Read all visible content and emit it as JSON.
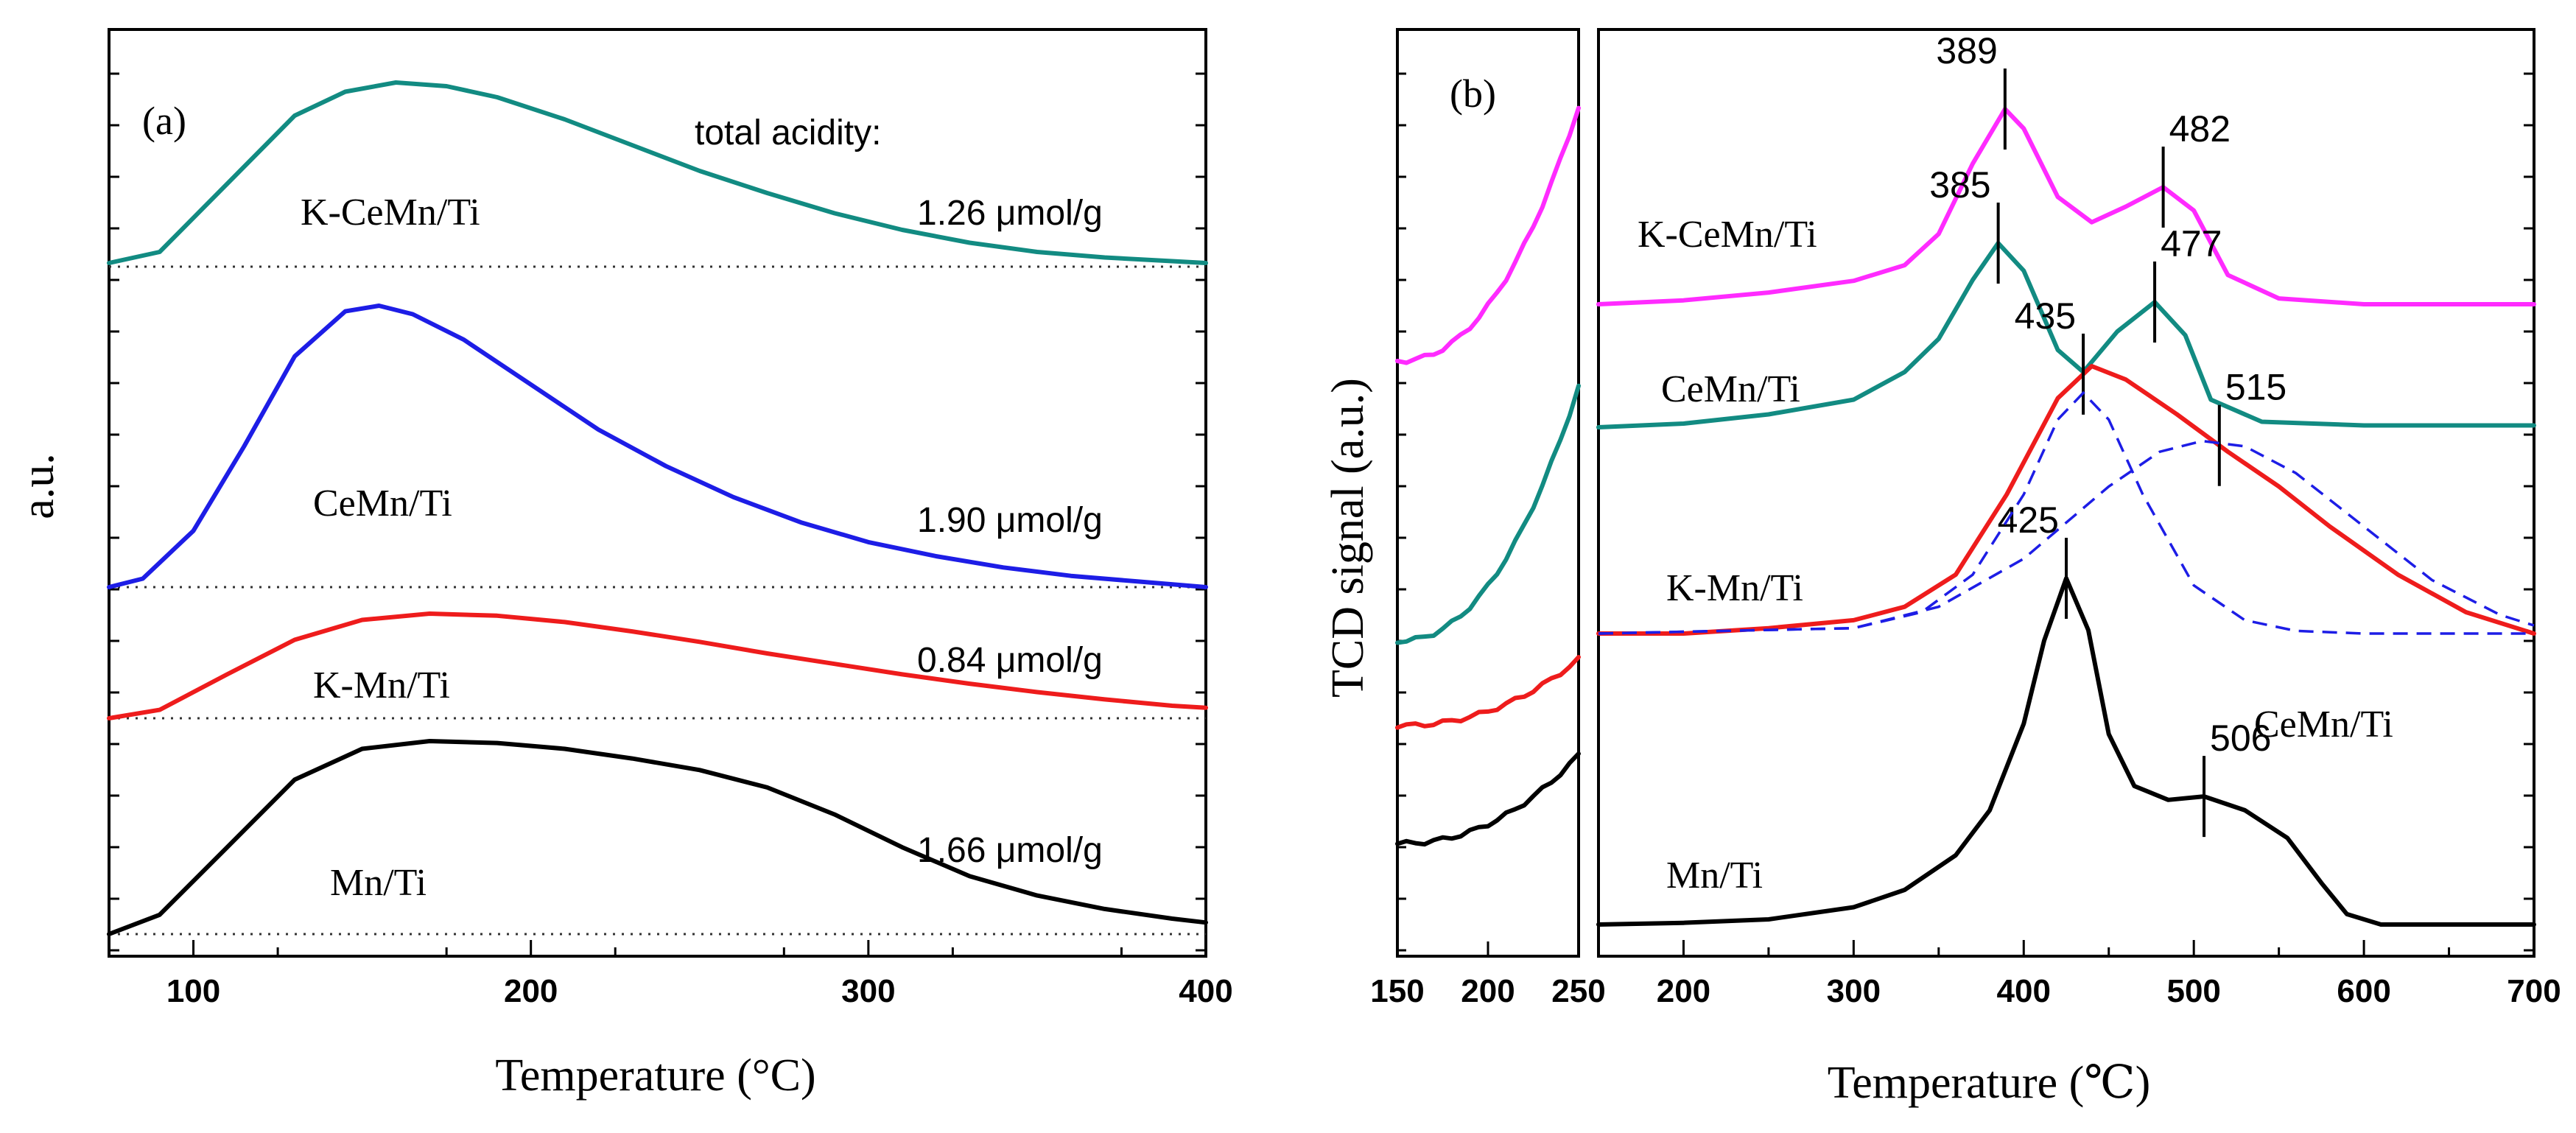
{
  "colors": {
    "K-CeMn/Ti_a": "#128b82",
    "CeMn/Ti_a": "#1d1de6",
    "K-Mn/Ti_a": "#ee1c1c",
    "Mn/Ti_a": "#000000",
    "K-CeMn/Ti_b": "#ff2bff",
    "CeMn/Ti_b": "#128b82",
    "K-Mn/Ti_b": "#ee1c1c",
    "Mn/Ti_b": "#000000",
    "deconvolution": "#1d1de6"
  },
  "chart_data": [
    {
      "panel": "(a)",
      "type": "line",
      "title": "",
      "xlabel": "Temperature (°C)",
      "ylabel": "a.u.",
      "xlim": [
        75,
        400
      ],
      "xticks": [
        100,
        200,
        300,
        400
      ],
      "annotation_header": "total acidity:",
      "series": [
        {
          "name": "K-CeMn/Ti",
          "acidity": "1.26 μmol/g",
          "x": [
            75,
            90,
            110,
            130,
            145,
            160,
            175,
            190,
            210,
            230,
            250,
            270,
            290,
            310,
            330,
            350,
            370,
            390,
            400
          ],
          "y": [
            0.02,
            0.08,
            0.45,
            0.82,
            0.95,
            1.0,
            0.98,
            0.92,
            0.8,
            0.66,
            0.52,
            0.4,
            0.29,
            0.2,
            0.13,
            0.08,
            0.05,
            0.03,
            0.02
          ]
        },
        {
          "name": "CeMn/Ti",
          "acidity": "1.90 μmol/g",
          "x": [
            75,
            85,
            100,
            115,
            130,
            145,
            155,
            165,
            180,
            200,
            220,
            240,
            260,
            280,
            300,
            320,
            340,
            360,
            380,
            400
          ],
          "y": [
            0.0,
            0.03,
            0.2,
            0.5,
            0.82,
            0.98,
            1.0,
            0.97,
            0.88,
            0.72,
            0.56,
            0.43,
            0.32,
            0.23,
            0.16,
            0.11,
            0.07,
            0.04,
            0.02,
            0.0
          ]
        },
        {
          "name": "K-Mn/Ti",
          "acidity": "0.84 μmol/g",
          "x": [
            75,
            90,
            110,
            130,
            150,
            170,
            190,
            210,
            230,
            250,
            270,
            290,
            310,
            330,
            350,
            370,
            390,
            400
          ],
          "y": [
            0.0,
            0.08,
            0.42,
            0.75,
            0.94,
            1.0,
            0.98,
            0.92,
            0.83,
            0.73,
            0.62,
            0.52,
            0.42,
            0.33,
            0.25,
            0.18,
            0.12,
            0.1
          ]
        },
        {
          "name": "Mn/Ti",
          "acidity": "1.66 μmol/g",
          "x": [
            75,
            90,
            110,
            130,
            150,
            170,
            190,
            210,
            230,
            250,
            270,
            290,
            310,
            330,
            350,
            370,
            390,
            400
          ],
          "y": [
            0.0,
            0.1,
            0.45,
            0.8,
            0.96,
            1.0,
            0.99,
            0.96,
            0.91,
            0.85,
            0.76,
            0.62,
            0.45,
            0.3,
            0.2,
            0.13,
            0.08,
            0.06
          ]
        }
      ]
    },
    {
      "panel": "(b)",
      "type": "line",
      "title": "",
      "xlabel": "Temperature (℃)",
      "ylabel": "TCD signal (a.u.)",
      "xlim_inset": [
        150,
        250
      ],
      "xticks_inset": [
        150,
        200,
        250
      ],
      "xlim": [
        150,
        700
      ],
      "xticks": [
        200,
        300,
        400,
        500,
        600,
        700
      ],
      "series": [
        {
          "name": "K-CeMn/Ti",
          "peaks": [
            "389",
            "482"
          ],
          "x": [
            150,
            200,
            250,
            300,
            330,
            350,
            370,
            389,
            400,
            420,
            440,
            460,
            482,
            500,
            520,
            550,
            600,
            700
          ],
          "y": [
            0.0,
            0.02,
            0.06,
            0.12,
            0.2,
            0.36,
            0.72,
            1.0,
            0.9,
            0.55,
            0.42,
            0.5,
            0.6,
            0.48,
            0.15,
            0.03,
            0.0,
            0.0
          ]
        },
        {
          "name": "CeMn/Ti",
          "peaks": [
            "385",
            "477"
          ],
          "x": [
            150,
            200,
            250,
            300,
            330,
            350,
            370,
            385,
            400,
            420,
            435,
            455,
            477,
            495,
            510,
            540,
            600,
            700
          ],
          "y": [
            0.0,
            0.02,
            0.07,
            0.15,
            0.3,
            0.48,
            0.8,
            1.0,
            0.85,
            0.42,
            0.3,
            0.52,
            0.68,
            0.5,
            0.15,
            0.03,
            0.01,
            0.01
          ]
        },
        {
          "name": "K-Mn/Ti",
          "peaks": [
            "435",
            "515"
          ],
          "x": [
            150,
            200,
            250,
            300,
            330,
            360,
            390,
            420,
            440,
            460,
            490,
            520,
            550,
            580,
            620,
            660,
            700
          ],
          "y": [
            0.0,
            0.0,
            0.02,
            0.05,
            0.1,
            0.22,
            0.52,
            0.88,
            1.0,
            0.95,
            0.82,
            0.68,
            0.55,
            0.4,
            0.22,
            0.08,
            0.0
          ]
        },
        {
          "name": "Mn/Ti",
          "peaks": [
            "425",
            "506"
          ],
          "x": [
            150,
            200,
            250,
            300,
            330,
            360,
            380,
            400,
            412,
            425,
            438,
            450,
            465,
            485,
            506,
            530,
            555,
            575,
            590,
            610,
            700
          ],
          "y": [
            0.0,
            0.005,
            0.015,
            0.05,
            0.1,
            0.2,
            0.33,
            0.58,
            0.82,
            1.0,
            0.85,
            0.55,
            0.4,
            0.36,
            0.37,
            0.33,
            0.25,
            0.12,
            0.03,
            0.0,
            0.0
          ]
        }
      ],
      "deconvolution": {
        "sample": "K-Mn/Ti",
        "components": [
          {
            "center": 435,
            "x": [
              150,
              300,
              340,
              370,
              400,
              420,
              435,
              450,
              470,
              500,
              530,
              560,
              600,
              700
            ],
            "y": [
              0.0,
              0.02,
              0.08,
              0.22,
              0.52,
              0.8,
              0.9,
              0.8,
              0.52,
              0.18,
              0.05,
              0.01,
              0.0,
              0.0
            ]
          },
          {
            "center": 515,
            "x": [
              150,
              300,
              350,
              400,
              450,
              480,
              505,
              530,
              560,
              600,
              640,
              680,
              700
            ],
            "y": [
              0.0,
              0.02,
              0.1,
              0.28,
              0.55,
              0.68,
              0.72,
              0.7,
              0.6,
              0.4,
              0.2,
              0.07,
              0.03
            ]
          }
        ]
      }
    }
  ]
}
